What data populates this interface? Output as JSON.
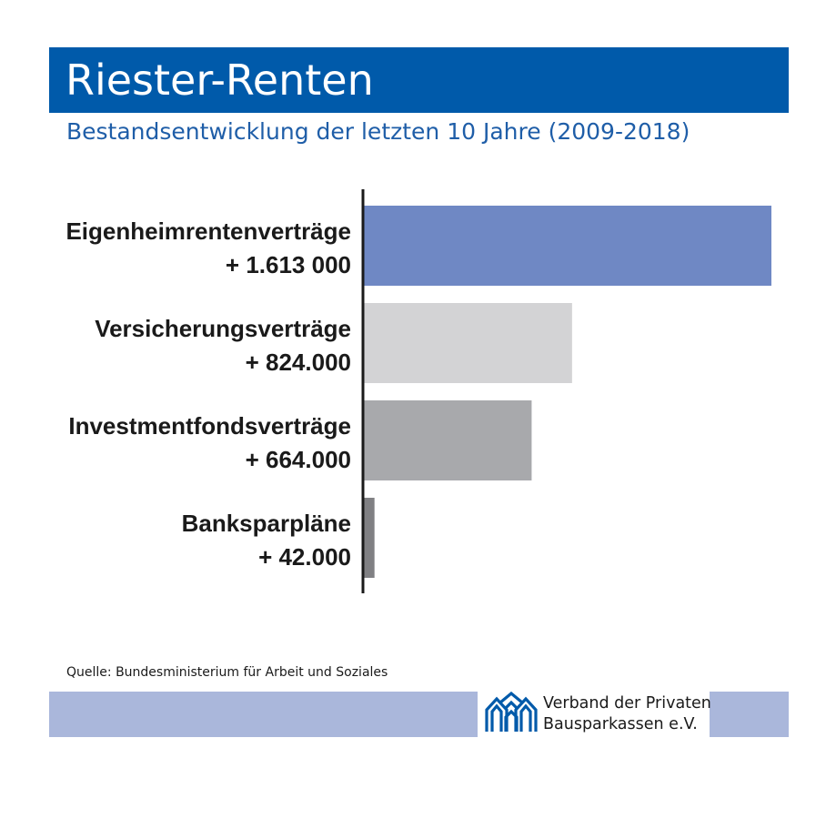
{
  "header": {
    "title": "Riester-Renten",
    "subtitle": "Bestandsentwicklung der letzten 10 Jahre (2009-2018)"
  },
  "chart_data": {
    "type": "bar",
    "orientation": "horizontal",
    "categories": [
      "Eigenheimrentenverträge",
      "Versicherungsverträge",
      "Investmentfondsverträge",
      "Banksparpläne"
    ],
    "values": [
      1613000,
      824000,
      664000,
      42000
    ],
    "value_labels": [
      "+ 1.613 000",
      "+ 824.000",
      "+ 664.000",
      "+ 42.000"
    ],
    "colors": [
      "#6f88c4",
      "#d3d3d5",
      "#a8a9ac",
      "#808083"
    ],
    "xlim": [
      0,
      1613000
    ],
    "grid": false,
    "legend": false
  },
  "source": "Quelle: Bundesministerium für Arbeit und Soziales",
  "logo": {
    "line1": "Verband der Privaten",
    "line2": "Bausparkassen e.V.",
    "icon": "house-roofs-icon",
    "color": "#005aaa"
  },
  "colors": {
    "title_bar": "#005aaa",
    "subtitle": "#1f5ea8",
    "footer_band": "#aab7db"
  }
}
